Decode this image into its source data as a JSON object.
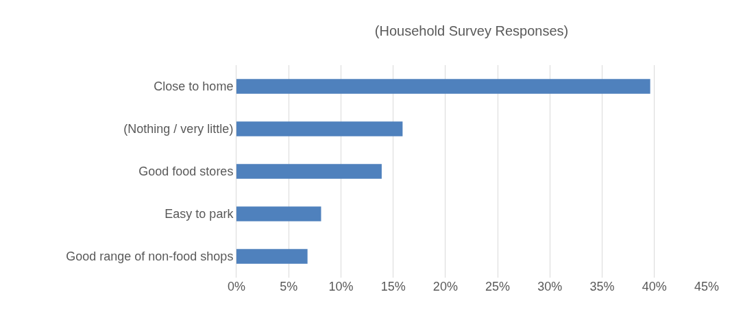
{
  "chart_data": {
    "type": "bar",
    "orientation": "horizontal",
    "title": "(Household Survey Responses)",
    "categories": [
      "Close to home",
      "(Nothing / very little)",
      "Good food stores",
      "Easy to park",
      "Good range of non-food shops"
    ],
    "values": [
      39.6,
      15.9,
      13.9,
      8.1,
      6.8
    ],
    "color": "#4f81bd",
    "xlim": [
      0,
      45
    ],
    "xticks": [
      {
        "value": 0,
        "label": "0%"
      },
      {
        "value": 5,
        "label": "5%"
      },
      {
        "value": 10,
        "label": "10%"
      },
      {
        "value": 15,
        "label": "15%"
      },
      {
        "value": 20,
        "label": "20%"
      },
      {
        "value": 25,
        "label": "25%"
      },
      {
        "value": 30,
        "label": "30%"
      },
      {
        "value": 35,
        "label": "35%"
      },
      {
        "value": 40,
        "label": "40%"
      },
      {
        "value": 45,
        "label": "45%"
      }
    ],
    "grid": "x",
    "legend": false
  }
}
